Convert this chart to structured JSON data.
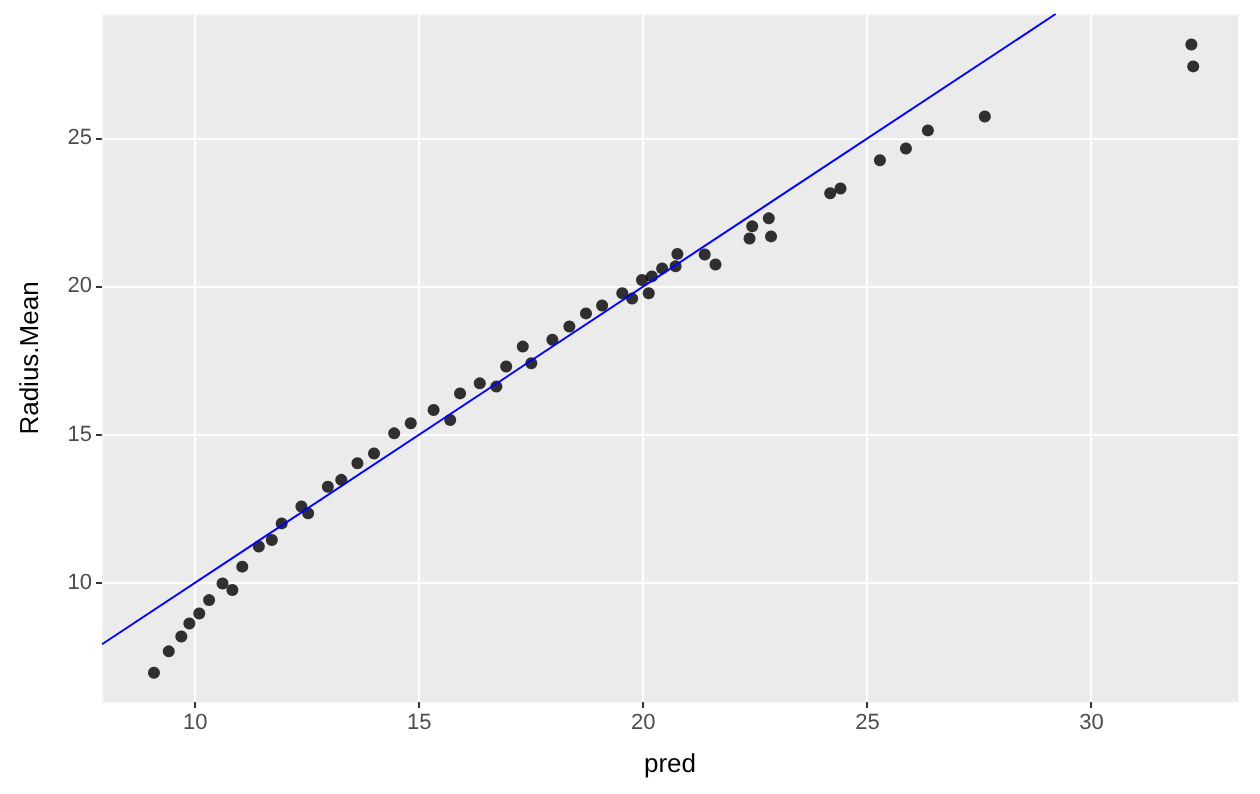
{
  "chart_data": {
    "type": "scatter",
    "xlabel": "pred",
    "ylabel": "Radius.Mean",
    "xlim": [
      7.92,
      33.27
    ],
    "ylim": [
      5.97,
      29.2
    ],
    "xticks": [
      10,
      15,
      20,
      25,
      30
    ],
    "yticks": [
      10,
      15,
      20,
      25
    ],
    "grid": true,
    "line_style": "solid",
    "series": [
      {
        "color": "#000000",
        "marker": "circle",
        "x": [
          9.08,
          9.41,
          9.69,
          9.87,
          10.09,
          10.31,
          10.61,
          10.83,
          11.05,
          11.42,
          11.71,
          11.93,
          12.37,
          12.52,
          12.96,
          13.26,
          13.62,
          13.99,
          14.44,
          14.81,
          15.32,
          15.69,
          15.91,
          16.35,
          16.72,
          16.94,
          17.31,
          17.5,
          17.97,
          18.35,
          18.72,
          19.08,
          19.53,
          19.75,
          19.97,
          20.19,
          20.12,
          20.42,
          20.76,
          20.72,
          21.37,
          21.61,
          22.37,
          22.43,
          22.8,
          22.85,
          24.17,
          24.4,
          25.28,
          25.86,
          26.35,
          27.62,
          32.23,
          32.27
        ],
        "values": [
          6.96,
          7.68,
          8.18,
          8.62,
          8.96,
          9.41,
          9.97,
          9.75,
          10.54,
          11.22,
          11.44,
          12.0,
          12.57,
          12.34,
          13.24,
          13.47,
          14.03,
          14.36,
          15.04,
          15.38,
          15.83,
          15.49,
          16.39,
          16.73,
          16.62,
          17.3,
          17.97,
          17.41,
          18.2,
          18.65,
          19.09,
          19.36,
          19.77,
          19.59,
          20.22,
          20.34,
          19.77,
          20.61,
          21.1,
          20.68,
          21.08,
          20.74,
          21.62,
          22.03,
          22.3,
          21.69,
          23.15,
          23.31,
          24.26,
          24.66,
          25.27,
          25.74,
          28.17,
          27.43
        ]
      },
      {
        "type": "line",
        "color": "#0000ff",
        "x": [
          7.92,
          29.2
        ],
        "values": [
          7.92,
          29.2
        ]
      }
    ]
  }
}
